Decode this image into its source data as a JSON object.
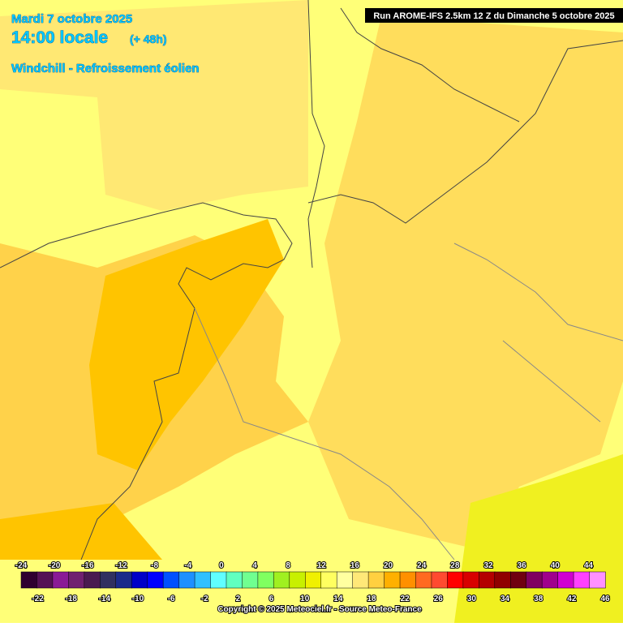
{
  "header": {
    "date": "Mardi 7 octobre 2025",
    "time": "14:00 locale",
    "lead": "(+ 48h)",
    "parameter": "Windchill - Refroissement éolien"
  },
  "run_info": "Run AROME-IFS 2.5km 12 Z du Dimanche 5 octobre 2025",
  "legend": {
    "range": [
      -24,
      46
    ],
    "colors": [
      "#300030",
      "#551155",
      "#8a1a96",
      "#702070",
      "#4a1a50",
      "#303060",
      "#1a2a8a",
      "#0000c8",
      "#0000ff",
      "#0050ff",
      "#1e90ff",
      "#30c0ff",
      "#60ffff",
      "#60ffc0",
      "#70ff90",
      "#80ff60",
      "#a0f020",
      "#c8f000",
      "#f0f000",
      "#ffff60",
      "#ffffa0",
      "#ffe878",
      "#ffd040",
      "#ffb000",
      "#ff9000",
      "#ff6a20",
      "#ff4a30",
      "#ff0000",
      "#d80000",
      "#b40000",
      "#900000",
      "#700010",
      "#800060",
      "#a0008c",
      "#d000d0",
      "#ff40ff",
      "#ff90ff"
    ],
    "ticks_top": [
      -24,
      -20,
      -16,
      -12,
      -8,
      -4,
      0,
      4,
      8,
      12,
      16,
      20,
      24,
      28,
      32,
      36,
      40,
      44
    ],
    "ticks_bottom": [
      -22,
      -18,
      -14,
      -10,
      -6,
      -2,
      2,
      6,
      10,
      14,
      18,
      22,
      26,
      30,
      34,
      38,
      42,
      46
    ]
  },
  "copyright": "Copyright © 2025 Meteociel.fr - Source Meteo-France"
}
